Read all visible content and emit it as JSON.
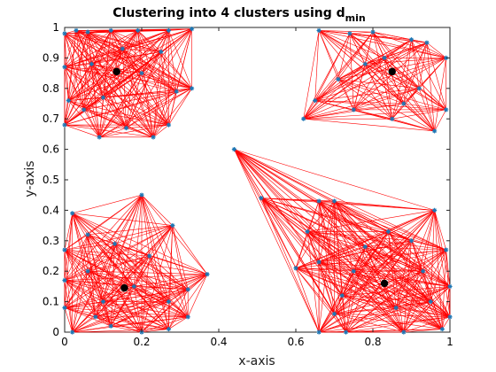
{
  "chart_data": {
    "type": "scatter",
    "title": "Clustering into 4 clusters using d",
    "title_subscript": "min",
    "xlabel": "x-axis",
    "ylabel": "y-axis",
    "xlim": [
      0,
      1
    ],
    "ylim": [
      0,
      1
    ],
    "xticks": [
      "0",
      "0.2",
      "0.4",
      "0.6",
      "0.8",
      "1"
    ],
    "yticks": [
      "0",
      "0.1",
      "0.2",
      "0.3",
      "0.4",
      "0.5",
      "0.6",
      "0.7",
      "0.8",
      "0.9",
      "1"
    ],
    "grid": false,
    "colors": {
      "edges": "#ff0000",
      "points": "#1f77b4",
      "centroids": "#000000"
    },
    "centroids": [
      {
        "x": 0.135,
        "y": 0.855
      },
      {
        "x": 0.85,
        "y": 0.855
      },
      {
        "x": 0.155,
        "y": 0.145
      },
      {
        "x": 0.83,
        "y": 0.16
      }
    ],
    "clusters": [
      {
        "points": [
          [
            0.0,
            0.98
          ],
          [
            0.03,
            0.99
          ],
          [
            0.06,
            0.985
          ],
          [
            0.12,
            0.99
          ],
          [
            0.19,
            0.99
          ],
          [
            0.27,
            0.99
          ],
          [
            0.33,
            0.995
          ],
          [
            0.0,
            0.87
          ],
          [
            0.01,
            0.76
          ],
          [
            0.0,
            0.68
          ],
          [
            0.09,
            0.64
          ],
          [
            0.16,
            0.67
          ],
          [
            0.23,
            0.64
          ],
          [
            0.27,
            0.68
          ],
          [
            0.33,
            0.8
          ],
          [
            0.29,
            0.79
          ],
          [
            0.07,
            0.88
          ],
          [
            0.15,
            0.93
          ],
          [
            0.1,
            0.77
          ],
          [
            0.2,
            0.85
          ],
          [
            0.05,
            0.73
          ],
          [
            0.25,
            0.92
          ]
        ]
      },
      {
        "points": [
          [
            0.66,
            0.99
          ],
          [
            0.74,
            0.98
          ],
          [
            0.8,
            0.985
          ],
          [
            0.9,
            0.96
          ],
          [
            0.94,
            0.95
          ],
          [
            0.99,
            0.9
          ],
          [
            0.71,
            0.83
          ],
          [
            0.65,
            0.76
          ],
          [
            0.62,
            0.7
          ],
          [
            0.75,
            0.73
          ],
          [
            0.85,
            0.7
          ],
          [
            0.96,
            0.66
          ],
          [
            0.99,
            0.73
          ],
          [
            0.92,
            0.8
          ],
          [
            0.83,
            0.9
          ],
          [
            0.78,
            0.88
          ],
          [
            0.88,
            0.75
          ]
        ]
      },
      {
        "points": [
          [
            0.02,
            0.39
          ],
          [
            0.06,
            0.32
          ],
          [
            0.2,
            0.45
          ],
          [
            0.28,
            0.35
          ],
          [
            0.13,
            0.29
          ],
          [
            0.0,
            0.27
          ],
          [
            0.0,
            0.17
          ],
          [
            0.0,
            0.08
          ],
          [
            0.02,
            0.0
          ],
          [
            0.12,
            0.02
          ],
          [
            0.2,
            0.0
          ],
          [
            0.27,
            0.01
          ],
          [
            0.32,
            0.05
          ],
          [
            0.37,
            0.19
          ],
          [
            0.32,
            0.14
          ],
          [
            0.27,
            0.1
          ],
          [
            0.1,
            0.1
          ],
          [
            0.06,
            0.2
          ],
          [
            0.22,
            0.25
          ],
          [
            0.18,
            0.15
          ],
          [
            0.08,
            0.05
          ]
        ]
      },
      {
        "points": [
          [
            0.44,
            0.6
          ],
          [
            0.51,
            0.44
          ],
          [
            0.66,
            0.43
          ],
          [
            0.7,
            0.43
          ],
          [
            0.63,
            0.33
          ],
          [
            0.66,
            0.23
          ],
          [
            0.6,
            0.21
          ],
          [
            0.66,
            0.0
          ],
          [
            0.73,
            0.0
          ],
          [
            0.88,
            0.0
          ],
          [
            0.98,
            0.01
          ],
          [
            1.0,
            0.05
          ],
          [
            1.0,
            0.15
          ],
          [
            0.99,
            0.27
          ],
          [
            0.96,
            0.4
          ],
          [
            0.9,
            0.3
          ],
          [
            0.84,
            0.33
          ],
          [
            0.72,
            0.12
          ],
          [
            0.78,
            0.28
          ],
          [
            0.93,
            0.2
          ],
          [
            0.86,
            0.08
          ],
          [
            0.7,
            0.06
          ],
          [
            0.95,
            0.1
          ],
          [
            0.75,
            0.2
          ]
        ]
      }
    ]
  }
}
